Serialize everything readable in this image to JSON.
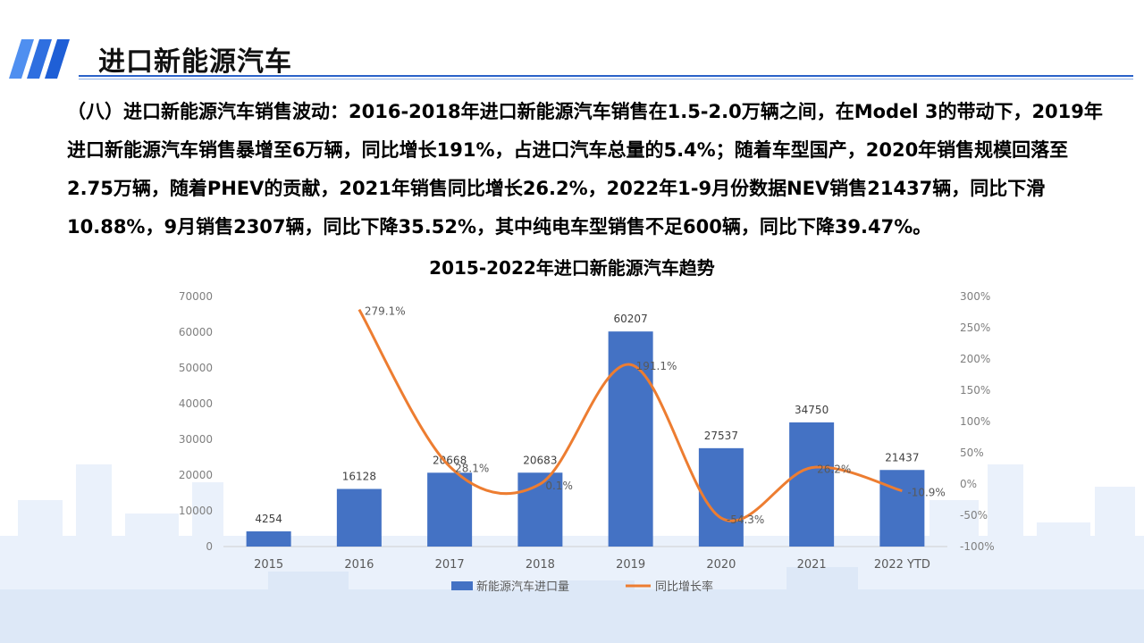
{
  "header": {
    "title": "进口新能源汽车",
    "accent_color": "#1f5fd6"
  },
  "body": {
    "paragraph": "（八）进口新能源汽车销售波动：2016-2018年进口新能源汽车销售在1.5-2.0万辆之间，在Model 3的带动下，2019年进口新能源汽车销售暴增至6万辆，同比增长191%，占进口汽车总量的5.4%；随着车型国产，2020年销售规模回落至2.75万辆，随着PHEV的贡献，2021年销售同比增长26.2%，2022年1-9月份数据NEV销售21437辆，同比下滑10.88%，9月销售2307辆，同比下降35.52%，其中纯电车型销售不足600辆，同比下降39.47%。"
  },
  "chart_data": {
    "type": "bar",
    "title": "2015-2022年进口新能源汽车趋势",
    "categories": [
      "2015",
      "2016",
      "2017",
      "2018",
      "2019",
      "2020",
      "2021",
      "2022 YTD"
    ],
    "series": [
      {
        "name": "新能源汽车进口量",
        "type": "bar",
        "axis": "left",
        "color": "#4472c4",
        "values": [
          4254,
          16128,
          20668,
          20683,
          60207,
          27537,
          34750,
          21437
        ]
      },
      {
        "name": "同比增长率",
        "type": "line",
        "axis": "right",
        "color": "#ed7d31",
        "values": [
          null,
          279.1,
          28.1,
          0.1,
          191.1,
          -54.3,
          26.2,
          -10.9
        ],
        "labels": [
          "",
          "279.1%",
          "28.1%",
          "0.1%",
          "191.1%",
          "-54.3%",
          "26.2%",
          "-10.9%"
        ]
      }
    ],
    "y_left": {
      "range": [
        0,
        70000
      ],
      "ticks": [
        "0",
        "10000",
        "20000",
        "30000",
        "40000",
        "50000",
        "60000",
        "70000"
      ]
    },
    "y_right": {
      "range": [
        -100,
        300
      ],
      "ticks": [
        "-100%",
        "-50%",
        "0%",
        "50%",
        "100%",
        "150%",
        "200%",
        "250%",
        "300%"
      ]
    },
    "legend_position": "bottom",
    "grid": false
  }
}
